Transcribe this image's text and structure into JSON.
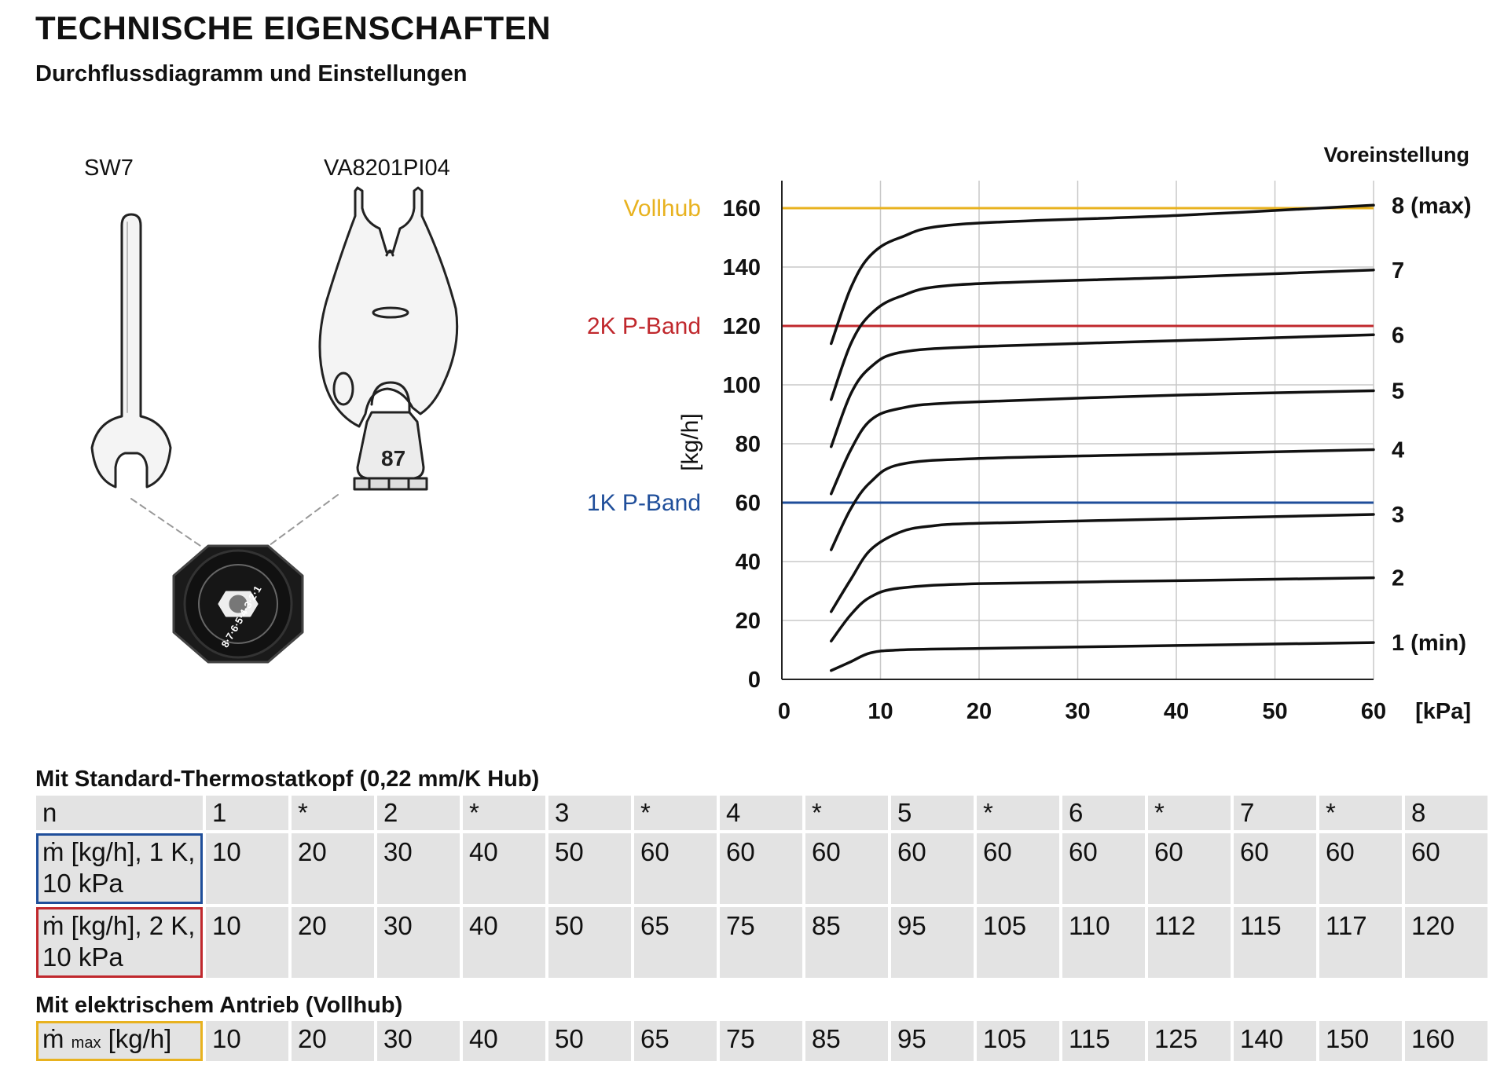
{
  "header": {
    "title": "TECHNISCHE EIGENSCHAFTEN",
    "subtitle": "Durchflussdiagramm und Einstellungen"
  },
  "tools": {
    "wrench_label": "SW7",
    "key_label": "VA8201PI04",
    "key_number": "87",
    "dial_digits": "8·7·6·5·4·3·2·1"
  },
  "chart_data": {
    "type": "line",
    "ylabel": "[kg/h]",
    "xlabel": "[kPa]",
    "legend_title": "Voreinstellung",
    "xlim": [
      0,
      60
    ],
    "ylim": [
      0,
      165
    ],
    "xticks": [
      0,
      10,
      20,
      30,
      40,
      50,
      60
    ],
    "yticks": [
      0,
      20,
      40,
      60,
      80,
      100,
      120,
      140,
      160
    ],
    "grid": true,
    "series": [
      {
        "name": "1 (min)",
        "points": [
          [
            5,
            3
          ],
          [
            7,
            6
          ],
          [
            9,
            9
          ],
          [
            12,
            10
          ],
          [
            20,
            10.5
          ],
          [
            40,
            11.5
          ],
          [
            60,
            12.5
          ]
        ]
      },
      {
        "name": "2",
        "points": [
          [
            5,
            13
          ],
          [
            7,
            22
          ],
          [
            9,
            28
          ],
          [
            12,
            31
          ],
          [
            20,
            32.5
          ],
          [
            40,
            33.5
          ],
          [
            60,
            34.5
          ]
        ]
      },
      {
        "name": "3",
        "points": [
          [
            5,
            23
          ],
          [
            7,
            34
          ],
          [
            9,
            44
          ],
          [
            12,
            50
          ],
          [
            15,
            52
          ],
          [
            20,
            53
          ],
          [
            40,
            54.5
          ],
          [
            60,
            56
          ]
        ]
      },
      {
        "name": "4",
        "points": [
          [
            5,
            44
          ],
          [
            7,
            58
          ],
          [
            9,
            67
          ],
          [
            12,
            73
          ],
          [
            20,
            75
          ],
          [
            40,
            76.5
          ],
          [
            60,
            78
          ]
        ]
      },
      {
        "name": "5",
        "points": [
          [
            5,
            63
          ],
          [
            7,
            78
          ],
          [
            9,
            88
          ],
          [
            12,
            92
          ],
          [
            18,
            94
          ],
          [
            40,
            96.5
          ],
          [
            60,
            98
          ]
        ]
      },
      {
        "name": "6",
        "points": [
          [
            5,
            79
          ],
          [
            7,
            97
          ],
          [
            9,
            106
          ],
          [
            12,
            111
          ],
          [
            20,
            113
          ],
          [
            40,
            115
          ],
          [
            60,
            117
          ]
        ]
      },
      {
        "name": "7",
        "points": [
          [
            5,
            95
          ],
          [
            7,
            114
          ],
          [
            9,
            124
          ],
          [
            12,
            130
          ],
          [
            18,
            134
          ],
          [
            40,
            136.5
          ],
          [
            60,
            139
          ]
        ]
      },
      {
        "name": "8 (max)",
        "points": [
          [
            5,
            114
          ],
          [
            7,
            133
          ],
          [
            9,
            144
          ],
          [
            12,
            150
          ],
          [
            18,
            154.5
          ],
          [
            40,
            157.5
          ],
          [
            60,
            161
          ]
        ]
      }
    ],
    "reference_lines": [
      {
        "label": "Vollhub",
        "y": 160,
        "color": "#e8b21f"
      },
      {
        "label": "2K P-Band",
        "y": 120,
        "color": "#c0282d"
      },
      {
        "label": "1K P-Band",
        "y": 60,
        "color": "#1f4e9a"
      }
    ]
  },
  "table_standard": {
    "heading": "Mit Standard-Thermostatkopf (0,22 mm/K Hub)",
    "rows": [
      {
        "label": "n",
        "values": [
          "1",
          "*",
          "2",
          "*",
          "3",
          "*",
          "4",
          "*",
          "5",
          "*",
          "6",
          "*",
          "7",
          "*",
          "8"
        ]
      },
      {
        "label": "ṁ [kg/h], 1 K, 10 kPa",
        "border_color": "#1f4e9a",
        "values": [
          "10",
          "20",
          "30",
          "40",
          "50",
          "60",
          "60",
          "60",
          "60",
          "60",
          "60",
          "60",
          "60",
          "60",
          "60"
        ]
      },
      {
        "label": "ṁ [kg/h], 2 K, 10 kPa",
        "border_color": "#c0282d",
        "values": [
          "10",
          "20",
          "30",
          "40",
          "50",
          "65",
          "75",
          "85",
          "95",
          "105",
          "110",
          "112",
          "115",
          "117",
          "120"
        ]
      }
    ]
  },
  "table_actuator": {
    "heading": "Mit elektrischem Antrieb (Vollhub)",
    "row_label_prefix": "ṁ",
    "row_label_sub": "max",
    "row_label_suffix": "[kg/h]",
    "border_color": "#e8b21f",
    "values": [
      "10",
      "20",
      "30",
      "40",
      "50",
      "65",
      "75",
      "85",
      "95",
      "105",
      "115",
      "125",
      "140",
      "150",
      "160"
    ]
  }
}
